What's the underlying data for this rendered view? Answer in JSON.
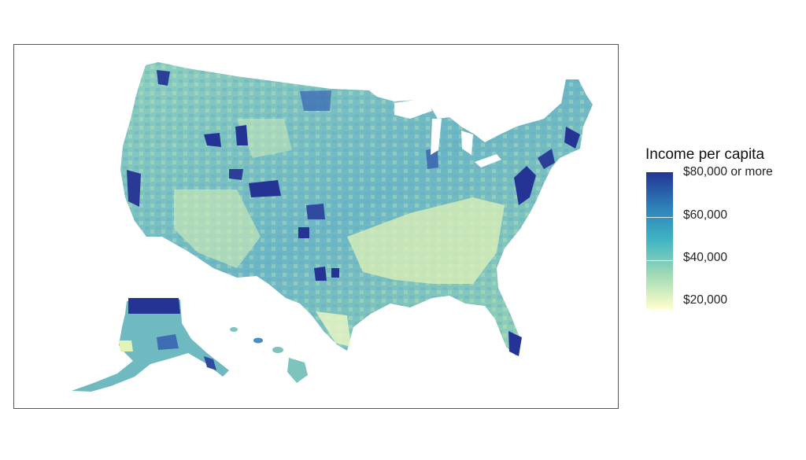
{
  "legend": {
    "title": "Income per capita",
    "labels": [
      {
        "text": "$80,000 or more",
        "value": 80000
      },
      {
        "text": "$60,000",
        "value": 60000
      },
      {
        "text": "$40,000",
        "value": 40000
      },
      {
        "text": "$20,000",
        "value": 20000
      }
    ],
    "range": [
      18000,
      82000
    ],
    "gradient_colors": [
      "#253494",
      "#2c7fb8",
      "#41b6c4",
      "#a1dab4",
      "#ffffcc"
    ]
  },
  "map": {
    "type": "choropleth",
    "subject": "US counties",
    "metric": "Income per capita",
    "regions": [
      "contiguous-us",
      "alaska",
      "hawaii"
    ]
  },
  "colors": {
    "frame": "#555555",
    "base_fill": "#7cc4bd",
    "high": "#253494",
    "low": "#ffffcc"
  }
}
